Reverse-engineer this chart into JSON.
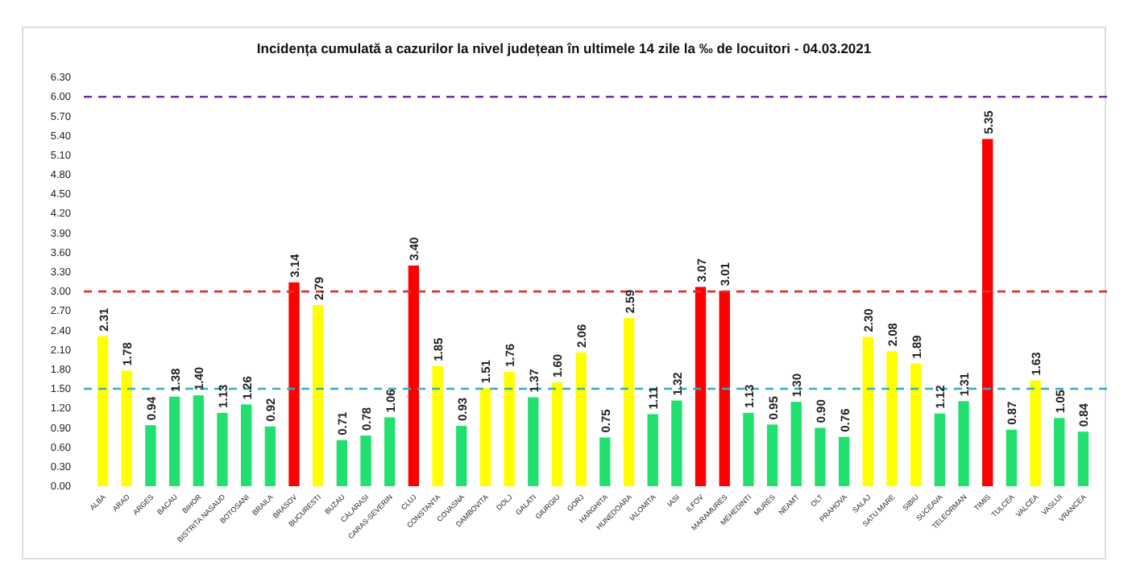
{
  "chart_data": {
    "type": "bar",
    "title": "Incidența cumulată a cazurilor la nivel județean în ultimele 14 zile la ‰ de locuitori - 04.03.2021",
    "categories": [
      "ALBA",
      "ARAD",
      "ARGES",
      "BACAU",
      "BIHOR",
      "BISTRITA NASAUD",
      "BOTOSANI",
      "BRAILA",
      "BRASOV",
      "BUCURESTI",
      "BUZAU",
      "CALARASI",
      "CARAS-SEVERIN",
      "CLUJ",
      "CONSTANTA",
      "COVASNA",
      "DAMBOVITA",
      "DOLJ",
      "GALATI",
      "GIURGIU",
      "GORJ",
      "HARGHITA",
      "HUNEDOARA",
      "IALOMITA",
      "IASI",
      "ILFOV",
      "MARAMURES",
      "MEHEDINTI",
      "MURES",
      "NEAMT",
      "OLT",
      "PRAHOVA",
      "SALAJ",
      "SATU MARE",
      "SIBIU",
      "SUCEAVA",
      "TELEORMAN",
      "TIMIS",
      "TULCEA",
      "VALCEA",
      "VASLUI",
      "VRANCEA"
    ],
    "values": [
      2.31,
      1.78,
      0.94,
      1.38,
      1.4,
      1.13,
      1.26,
      0.92,
      3.14,
      2.79,
      0.71,
      0.78,
      1.06,
      3.4,
      1.85,
      0.93,
      1.51,
      1.76,
      1.37,
      1.6,
      2.06,
      0.75,
      2.59,
      1.11,
      1.32,
      3.07,
      3.01,
      1.13,
      0.95,
      1.3,
      0.9,
      0.76,
      2.3,
      2.08,
      1.89,
      1.12,
      1.31,
      5.35,
      0.87,
      1.63,
      1.05,
      0.84
    ],
    "value_labels": [
      "2.31",
      "1.78",
      "0.94",
      "1.38",
      "1.40",
      "1.13",
      "1.26",
      "0.92",
      "3.14",
      "2.79",
      "0.71",
      "0.78",
      "1.06",
      "3.40",
      "1.85",
      "0.93",
      "1.51",
      "1.76",
      "1.37",
      "1.60",
      "2.06",
      "0.75",
      "2.59",
      "1.11",
      "1.32",
      "3.07",
      "3.01",
      "1.13",
      "0.95",
      "1.30",
      "0.90",
      "0.76",
      "2.30",
      "2.08",
      "1.89",
      "1.12",
      "1.31",
      "5.35",
      "0.87",
      "1.63",
      "1.05",
      "0.84"
    ],
    "colors": [
      "#ffff00",
      "#ffff00",
      "#22e070",
      "#22e070",
      "#22e070",
      "#22e070",
      "#22e070",
      "#22e070",
      "#ff0000",
      "#ffff00",
      "#22e070",
      "#22e070",
      "#22e070",
      "#ff0000",
      "#ffff00",
      "#22e070",
      "#ffff00",
      "#ffff00",
      "#22e070",
      "#ffff00",
      "#ffff00",
      "#22e070",
      "#ffff00",
      "#22e070",
      "#22e070",
      "#ff0000",
      "#ff0000",
      "#22e070",
      "#22e070",
      "#22e070",
      "#22e070",
      "#22e070",
      "#ffff00",
      "#ffff00",
      "#ffff00",
      "#22e070",
      "#22e070",
      "#ff0000",
      "#22e070",
      "#ffff00",
      "#22e070",
      "#22e070"
    ],
    "ylim": [
      0,
      6.3
    ],
    "yticks": [
      {
        "value": 0,
        "label": "0.00"
      },
      {
        "value": 0.3,
        "label": "0.30"
      },
      {
        "value": 0.6,
        "label": "0.60"
      },
      {
        "value": 0.9,
        "label": "0.90"
      },
      {
        "value": 1.2,
        "label": "1.20"
      },
      {
        "value": 1.5,
        "label": "1.50"
      },
      {
        "value": 1.8,
        "label": "1.80"
      },
      {
        "value": 2.1,
        "label": "2.10"
      },
      {
        "value": 2.4,
        "label": "2.40"
      },
      {
        "value": 2.7,
        "label": "2.70"
      },
      {
        "value": 3,
        "label": "3.00"
      },
      {
        "value": 3.3,
        "label": "3.30"
      },
      {
        "value": 3.6,
        "label": "3.60"
      },
      {
        "value": 3.9,
        "label": "3.90"
      },
      {
        "value": 4.2,
        "label": "4.20"
      },
      {
        "value": 4.5,
        "label": "4.50"
      },
      {
        "value": 4.8,
        "label": "4.80"
      },
      {
        "value": 5.1,
        "label": "5.10"
      },
      {
        "value": 5.4,
        "label": "5.40"
      },
      {
        "value": 5.7,
        "label": "5.70"
      },
      {
        "value": 6,
        "label": "6.00"
      },
      {
        "value": 6.3,
        "label": "6.30"
      }
    ],
    "ref_lines": [
      {
        "axis": "y",
        "value": 6,
        "color": "#7030a0",
        "line_style": "dashed"
      },
      {
        "axis": "y",
        "value": 3,
        "color": "#e03030",
        "line_style": "dashed"
      },
      {
        "axis": "y",
        "value": 1.5,
        "color": "#30b0c0",
        "line_style": "dashed"
      }
    ],
    "grid": false
  }
}
